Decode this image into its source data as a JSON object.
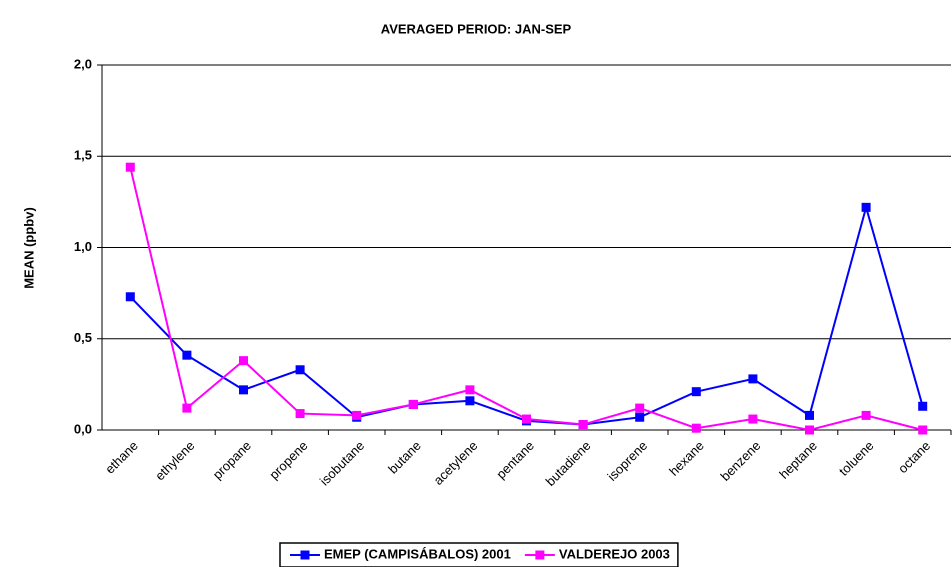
{
  "chart_data": {
    "type": "line",
    "title": "AVERAGED PERIOD: JAN-SEP",
    "y_label": "MEAN (ppbv)",
    "categories": [
      "ethane",
      "ethylene",
      "propane",
      "propene",
      "isobutane",
      "butane",
      "acetylene",
      "pentane",
      "butadiene",
      "isoprene",
      "hexane",
      "benzene",
      "heptane",
      "toluene",
      "octane"
    ],
    "series": [
      {
        "name": "EMEP (CAMPISÁBALOS) 2001",
        "color": "#0000ff",
        "values": [
          0.73,
          0.41,
          0.22,
          0.33,
          0.07,
          0.14,
          0.16,
          0.05,
          0.03,
          0.07,
          0.21,
          0.28,
          0.08,
          1.22,
          0.13
        ]
      },
      {
        "name": "VALDEREJO 2003",
        "color": "#ff00ff",
        "values": [
          1.44,
          0.12,
          0.38,
          0.09,
          0.08,
          0.14,
          0.22,
          0.06,
          0.03,
          0.12,
          0.01,
          0.06,
          0,
          0.08,
          0
        ]
      }
    ],
    "ylim": [
      0,
      2
    ],
    "yticks": [
      {
        "value": 0,
        "label": "0,0"
      },
      {
        "value": 0.5,
        "label": "0,5"
      },
      {
        "value": 1,
        "label": "1,0"
      },
      {
        "value": 1.5,
        "label": "1,5"
      },
      {
        "value": 2,
        "label": "2,0"
      }
    ],
    "grid": true,
    "legend": "bottom"
  }
}
